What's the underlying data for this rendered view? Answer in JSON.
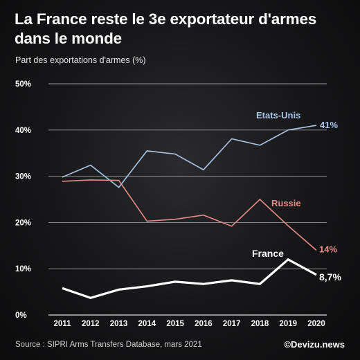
{
  "header": {
    "title": "La France reste le 3e exportateur d'armes dans le monde",
    "subtitle": "Part des exportations d'armes (%)"
  },
  "footer": {
    "source": "Source : SIPRI Arms Transfers Database, mars 2021",
    "brand": "©Devizu.news"
  },
  "chart_data": {
    "type": "line",
    "title": "La France reste le 3e exportateur d'armes dans le monde",
    "ylabel": "Part des exportations d'armes (%)",
    "xlabel": "",
    "x": [
      2011,
      2012,
      2013,
      2014,
      2015,
      2016,
      2017,
      2018,
      2019,
      2020
    ],
    "ylim": [
      0,
      50
    ],
    "yticks": [
      0,
      10,
      20,
      30,
      40,
      50
    ],
    "ytick_labels": [
      "0%",
      "10%",
      "20%",
      "30%",
      "40%",
      "50%"
    ],
    "grid": true,
    "series": [
      {
        "name": "Etats-Unis",
        "values": [
          29.8,
          32.4,
          27.6,
          35.5,
          34.8,
          31.4,
          38.1,
          36.7,
          40,
          41
        ],
        "color": "#a9c6e8",
        "end_label": "41%"
      },
      {
        "name": "Russie",
        "values": [
          28.9,
          29.2,
          29.1,
          20.3,
          20.7,
          21.6,
          19.2,
          25,
          19.3,
          14
        ],
        "color": "#e58c86",
        "end_label": "14%"
      },
      {
        "name": "France",
        "values": [
          5.8,
          3.7,
          5.5,
          6.2,
          7.2,
          6.7,
          7.5,
          6.7,
          12,
          8.7
        ],
        "color": "#ffffff",
        "end_label": "8,7%"
      }
    ]
  }
}
